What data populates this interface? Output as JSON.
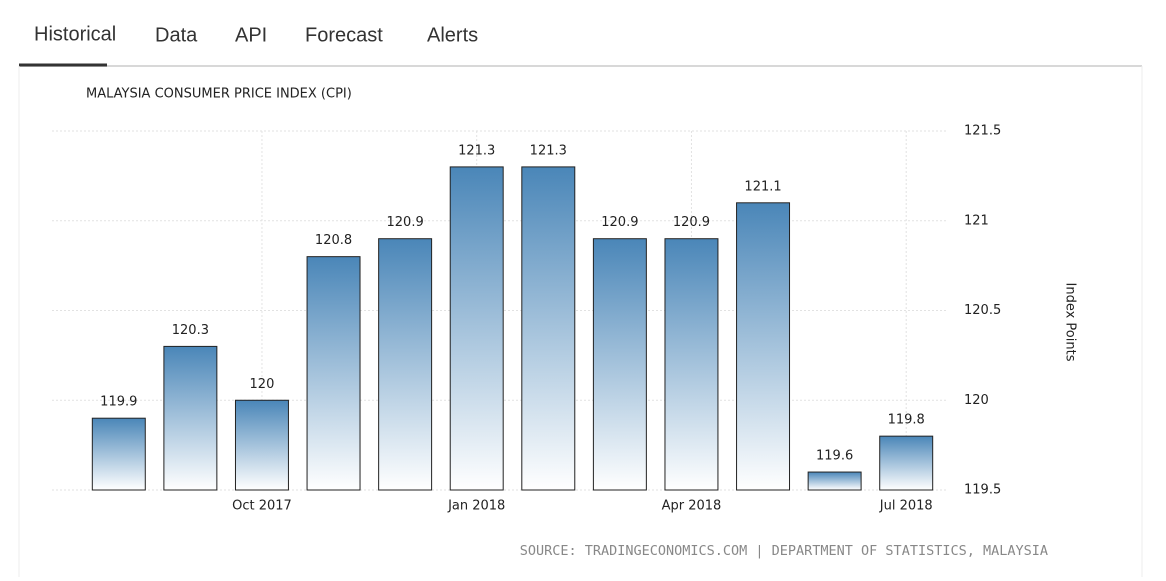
{
  "tabs": [
    "Historical",
    "Data",
    "API",
    "Forecast",
    "Alerts"
  ],
  "chart_data": {
    "type": "bar",
    "title": "MALAYSIA CONSUMER PRICE INDEX (CPI)",
    "y_label": "Index Points",
    "categories": [
      null,
      null,
      "Oct 2017",
      null,
      null,
      "Jan 2018",
      null,
      null,
      "Apr 2018",
      null,
      null,
      "Jul 2018"
    ],
    "values": [
      119.9,
      120.3,
      120,
      120.8,
      120.9,
      121.3,
      121.3,
      120.9,
      120.9,
      121.1,
      119.6,
      119.8
    ],
    "color": "#4a86b8",
    "ylim": [
      119.5,
      121.5
    ],
    "yticks": [
      119.5,
      120,
      120.5,
      121,
      121.5
    ],
    "grid": true,
    "source": "SOURCE: TRADINGECONOMICS.COM | DEPARTMENT OF STATISTICS, MALAYSIA"
  }
}
